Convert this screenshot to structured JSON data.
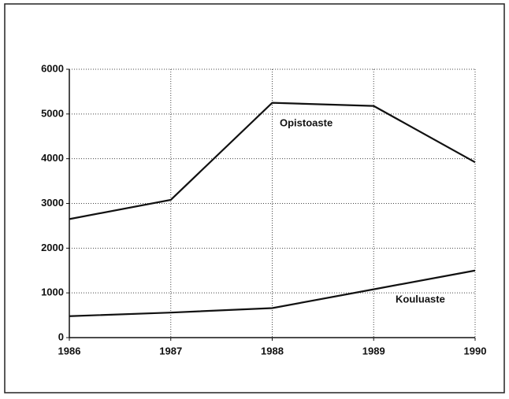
{
  "chart_data": {
    "type": "line",
    "x": [
      1986,
      1987,
      1988,
      1989,
      1990
    ],
    "series": [
      {
        "name": "Opistoaste",
        "color": "#111111",
        "values": [
          2650,
          3080,
          5250,
          5180,
          3920
        ]
      },
      {
        "name": "Kouluaste",
        "color": "#111111",
        "values": [
          480,
          560,
          660,
          1080,
          1500
        ]
      }
    ],
    "xlim": [
      1986,
      1990
    ],
    "xticks": [
      1986,
      1987,
      1988,
      1989,
      1990
    ],
    "ylim": [
      0,
      6000
    ],
    "yticks": [
      0,
      1000,
      2000,
      3000,
      4000,
      5000,
      6000
    ],
    "grid": true
  }
}
